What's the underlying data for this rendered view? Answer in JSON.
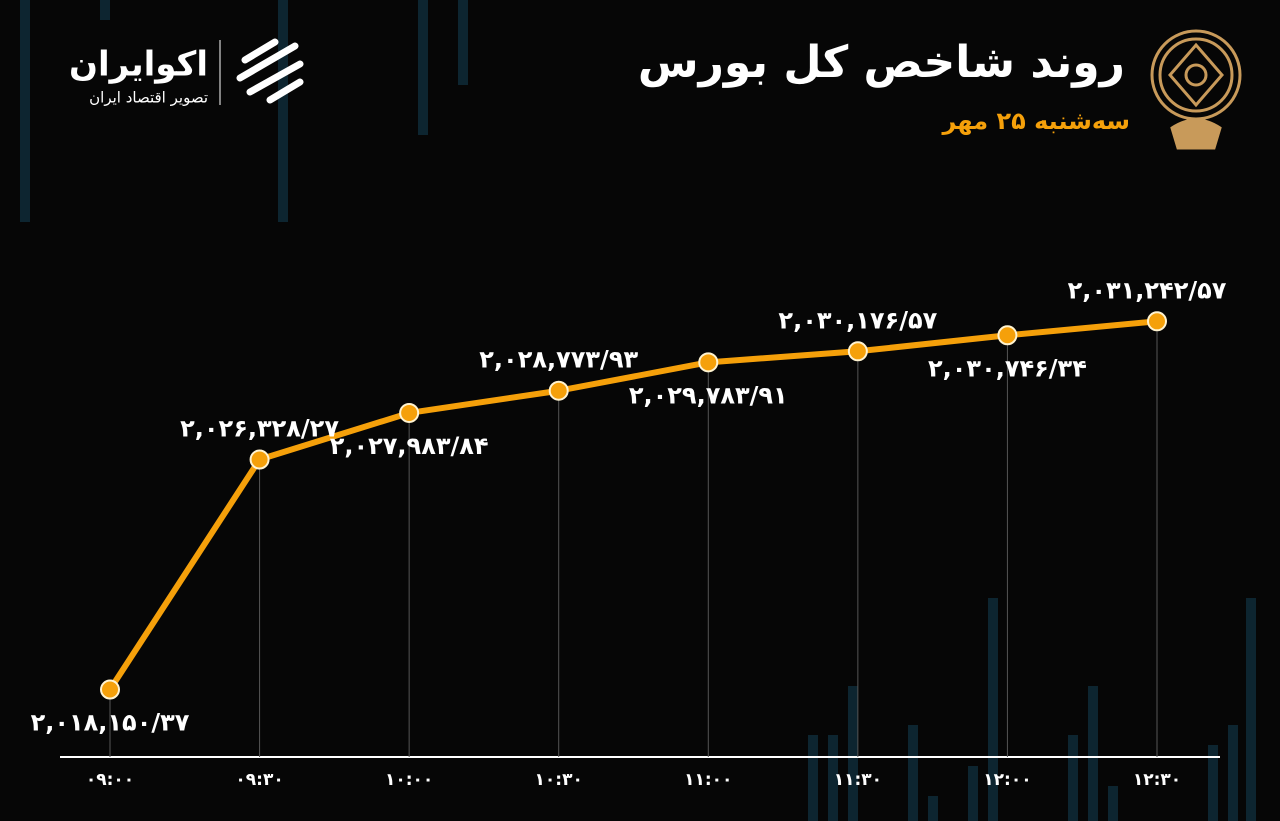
{
  "brand": {
    "name": "اکوایران",
    "tagline": "تصویر اقتصاد ایران"
  },
  "chart_data": {
    "type": "line",
    "title": "روند شاخص کل بورس",
    "subtitle": "سه‌شنبه ۲۵ مهر",
    "categories": [
      "۰۹:۰۰",
      "۰۹:۳۰",
      "۱۰:۰۰",
      "۱۰:۳۰",
      "۱۱:۰۰",
      "۱۱:۳۰",
      "۱۲:۰۰",
      "۱۲:۳۰"
    ],
    "values": [
      2018150.37,
      2026328.27,
      2027983.84,
      2028773.93,
      2029783.91,
      2030176.57,
      2030746.34,
      2031242.57
    ],
    "value_labels": [
      "۲,۰۱۸,۱۵۰/۳۷",
      "۲,۰۲۶,۳۲۸/۲۷",
      "۲,۰۲۷,۹۸۳/۸۴",
      "۲,۰۲۸,۷۷۳/۹۳",
      "۲,۰۲۹,۷۸۳/۹۱",
      "۲,۰۳۰,۱۷۶/۵۷",
      "۲,۰۳۰,۷۴۶/۳۴",
      "۲,۰۳۱,۲۴۲/۵۷"
    ],
    "color": "#f5a00a",
    "ylim": [
      2016000,
      2032000
    ]
  }
}
